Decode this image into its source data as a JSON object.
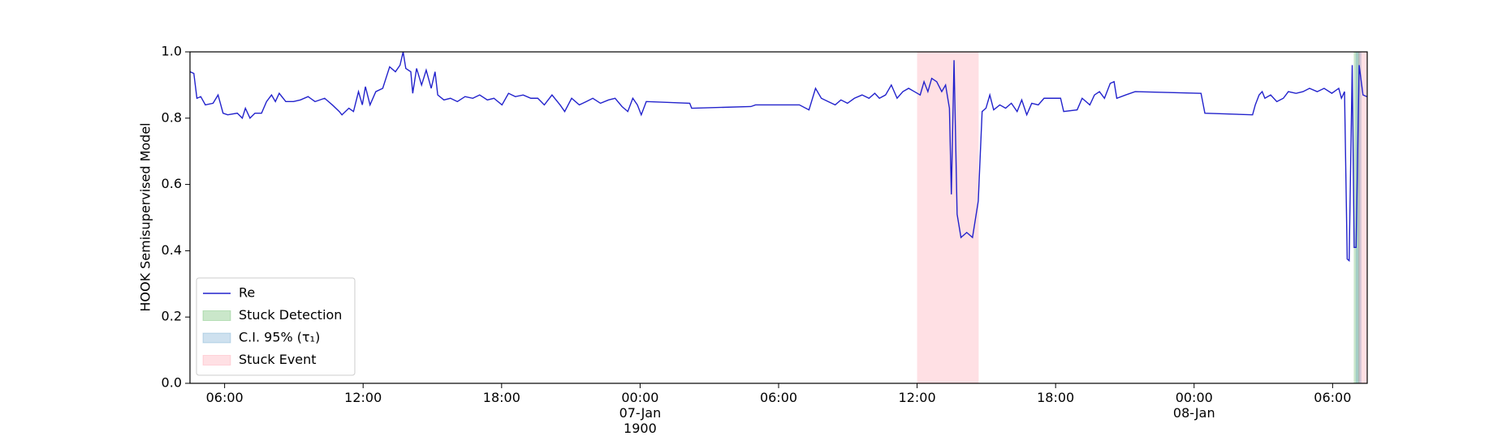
{
  "chart_data": {
    "type": "line",
    "ylabel": "HOOK Semisupervised Model",
    "xlim": [
      "1900-01-06 04:30",
      "1900-01-08 07:30"
    ],
    "ylim": [
      0,
      1
    ],
    "xticks": [
      {
        "value": "1900-01-06 06:00",
        "label": "06:00"
      },
      {
        "value": "1900-01-06 12:00",
        "label": "12:00"
      },
      {
        "value": "1900-01-06 18:00",
        "label": "18:00"
      },
      {
        "value": "1900-01-07 00:00",
        "label": "00:00\n07-Jan\n1900"
      },
      {
        "value": "1900-01-07 06:00",
        "label": "06:00"
      },
      {
        "value": "1900-01-07 12:00",
        "label": "12:00"
      },
      {
        "value": "1900-01-07 18:00",
        "label": "18:00"
      },
      {
        "value": "1900-01-08 00:00",
        "label": "00:00\n08-Jan"
      },
      {
        "value": "1900-01-08 06:00",
        "label": "06:00"
      }
    ],
    "yticks": [
      {
        "value": 0,
        "label": "0.0"
      },
      0.2,
      0.4,
      0.6,
      0.8,
      {
        "value": 1,
        "label": "1.0"
      }
    ],
    "legend": "lower left",
    "x": [
      "1900-01-06 04:30",
      "1900-01-06 04:40",
      "1900-01-06 04:48",
      "1900-01-06 04:58",
      "1900-01-06 05:10",
      "1900-01-06 05:30",
      "1900-01-06 05:43",
      "1900-01-06 05:56",
      "1900-01-06 06:08",
      "1900-01-06 06:33",
      "1900-01-06 06:46",
      "1900-01-06 06:54",
      "1900-01-06 07:06",
      "1900-01-06 07:19",
      "1900-01-06 07:36",
      "1900-01-06 07:49",
      "1900-01-06 08:02",
      "1900-01-06 08:12",
      "1900-01-06 08:22",
      "1900-01-06 08:39",
      "1900-01-06 08:59",
      "1900-01-06 09:17",
      "1900-01-06 09:37",
      "1900-01-06 09:55",
      "1900-01-06 10:20",
      "1900-01-06 10:40",
      "1900-01-06 10:58",
      "1900-01-06 11:05",
      "1900-01-06 11:23",
      "1900-01-06 11:35",
      "1900-01-06 11:48",
      "1900-01-06 11:58",
      "1900-01-06 12:06",
      "1900-01-06 12:18",
      "1900-01-06 12:33",
      "1900-01-06 12:51",
      "1900-01-06 13:09",
      "1900-01-06 13:24",
      "1900-01-06 13:36",
      "1900-01-06 13:44",
      "1900-01-06 13:51",
      "1900-01-06 14:04",
      "1900-01-06 14:09",
      "1900-01-06 14:19",
      "1900-01-06 14:32",
      "1900-01-06 14:44",
      "1900-01-06 14:57",
      "1900-01-06 15:07",
      "1900-01-06 15:14",
      "1900-01-06 15:30",
      "1900-01-06 15:47",
      "1900-01-06 16:05",
      "1900-01-06 16:25",
      "1900-01-06 16:45",
      "1900-01-06 17:03",
      "1900-01-06 17:23",
      "1900-01-06 17:40",
      "1900-01-06 18:01",
      "1900-01-06 18:18",
      "1900-01-06 18:36",
      "1900-01-06 18:56",
      "1900-01-06 19:16",
      "1900-01-06 19:34",
      "1900-01-06 19:51",
      "1900-01-06 20:11",
      "1900-01-06 20:32",
      "1900-01-06 20:44",
      "1900-01-06 21:02",
      "1900-01-06 21:22",
      "1900-01-06 21:40",
      "1900-01-06 21:57",
      "1900-01-06 22:17",
      "1900-01-06 22:38",
      "1900-01-06 22:55",
      "1900-01-06 23:13",
      "1900-01-06 23:28",
      "1900-01-06 23:41",
      "1900-01-06 23:53",
      "1900-01-07 00:03",
      "1900-01-07 00:16",
      "1900-01-07 02:09",
      "1900-01-07 02:14",
      "1900-01-07 04:48",
      "1900-01-07 05:00",
      "1900-01-07 06:54",
      "1900-01-07 07:19",
      "1900-01-07 07:36",
      "1900-01-07 07:51",
      "1900-01-07 08:09",
      "1900-01-07 08:27",
      "1900-01-07 08:42",
      "1900-01-07 08:59",
      "1900-01-07 09:17",
      "1900-01-07 09:37",
      "1900-01-07 09:55",
      "1900-01-07 10:10",
      "1900-01-07 10:22",
      "1900-01-07 10:38",
      "1900-01-07 10:53",
      "1900-01-07 11:08",
      "1900-01-07 11:23",
      "1900-01-07 11:38",
      "1900-01-07 11:53",
      "1900-01-07 12:08",
      "1900-01-07 12:18",
      "1900-01-07 12:28",
      "1900-01-07 12:38",
      "1900-01-07 12:51",
      "1900-01-07 13:04",
      "1900-01-07 13:14",
      "1900-01-07 13:24",
      "1900-01-07 13:29",
      "1900-01-07 13:36",
      "1900-01-07 13:44",
      "1900-01-07 13:54",
      "1900-01-07 14:09",
      "1900-01-07 14:24",
      "1900-01-07 14:39",
      "1900-01-07 14:49",
      "1900-01-07 14:59",
      "1900-01-07 15:09",
      "1900-01-07 15:19",
      "1900-01-07 15:35",
      "1900-01-07 15:50",
      "1900-01-07 16:05",
      "1900-01-07 16:20",
      "1900-01-07 16:32",
      "1900-01-07 16:45",
      "1900-01-07 16:58",
      "1900-01-07 17:15",
      "1900-01-07 17:30",
      "1900-01-07 18:13",
      "1900-01-07 18:21",
      "1900-01-07 18:56",
      "1900-01-07 19:09",
      "1900-01-07 19:29",
      "1900-01-07 19:41",
      "1900-01-07 19:54",
      "1900-01-07 20:07",
      "1900-01-07 20:22",
      "1900-01-07 20:32",
      "1900-01-07 20:39",
      "1900-01-07 21:02",
      "1900-01-07 21:27",
      "1900-01-08 00:18",
      "1900-01-08 00:28",
      "1900-01-08 02:32",
      "1900-01-08 02:39",
      "1900-01-08 02:49",
      "1900-01-08 02:57",
      "1900-01-08 03:04",
      "1900-01-08 03:19",
      "1900-01-08 03:35",
      "1900-01-08 03:52",
      "1900-01-08 04:05",
      "1900-01-08 04:25",
      "1900-01-08 04:43",
      "1900-01-08 05:00",
      "1900-01-08 05:20",
      "1900-01-08 05:38",
      "1900-01-08 05:58",
      "1900-01-08 06:16",
      "1900-01-08 06:23",
      "1900-01-08 06:31",
      "1900-01-08 06:38",
      "1900-01-08 06:43",
      "1900-01-08 06:51",
      "1900-01-08 06:56",
      "1900-01-08 07:01",
      "1900-01-08 07:09",
      "1900-01-08 07:19",
      "1900-01-08 07:29"
    ],
    "series": [
      {
        "name": "Re",
        "color": "#2222cc",
        "values": [
          0.94,
          0.935,
          0.86,
          0.865,
          0.84,
          0.845,
          0.87,
          0.815,
          0.81,
          0.815,
          0.8,
          0.83,
          0.8,
          0.815,
          0.815,
          0.85,
          0.87,
          0.85,
          0.875,
          0.85,
          0.85,
          0.855,
          0.865,
          0.85,
          0.86,
          0.84,
          0.82,
          0.81,
          0.83,
          0.82,
          0.88,
          0.84,
          0.895,
          0.84,
          0.88,
          0.89,
          0.955,
          0.94,
          0.96,
          1.0,
          0.95,
          0.94,
          0.875,
          0.95,
          0.9,
          0.945,
          0.89,
          0.94,
          0.87,
          0.855,
          0.86,
          0.85,
          0.865,
          0.86,
          0.87,
          0.855,
          0.86,
          0.84,
          0.875,
          0.865,
          0.87,
          0.86,
          0.86,
          0.84,
          0.87,
          0.84,
          0.82,
          0.86,
          0.84,
          0.85,
          0.86,
          0.845,
          0.855,
          0.86,
          0.835,
          0.82,
          0.86,
          0.84,
          0.81,
          0.85,
          0.845,
          0.83,
          0.835,
          0.84,
          0.84,
          0.825,
          0.89,
          0.86,
          0.85,
          0.84,
          0.855,
          0.845,
          0.86,
          0.87,
          0.86,
          0.875,
          0.86,
          0.87,
          0.9,
          0.86,
          0.88,
          0.89,
          0.88,
          0.87,
          0.91,
          0.88,
          0.92,
          0.91,
          0.88,
          0.9,
          0.83,
          0.57,
          0.975,
          0.51,
          0.44,
          0.455,
          0.44,
          0.55,
          0.82,
          0.83,
          0.87,
          0.825,
          0.84,
          0.83,
          0.845,
          0.82,
          0.855,
          0.81,
          0.845,
          0.84,
          0.86,
          0.86,
          0.82,
          0.825,
          0.86,
          0.84,
          0.87,
          0.88,
          0.86,
          0.905,
          0.91,
          0.86,
          0.87,
          0.88,
          0.875,
          0.815,
          0.81,
          0.84,
          0.87,
          0.88,
          0.86,
          0.87,
          0.85,
          0.86,
          0.88,
          0.875,
          0.88,
          0.89,
          0.88,
          0.89,
          0.875,
          0.89,
          0.86,
          0.88,
          0.375,
          0.37,
          0.96,
          0.41,
          0.41,
          0.96,
          0.87,
          0.865
        ]
      }
    ],
    "regions": [
      {
        "name": "Stuck Detection",
        "color": "#2ca02c",
        "spans": [
          [
            "1900-01-08 06:55",
            "1900-01-08 07:10"
          ]
        ]
      },
      {
        "name": "C.I. 95% (τ₁)",
        "color": "#1f77b4",
        "spans": [
          [
            "1900-01-08 07:00",
            "1900-01-08 07:15"
          ]
        ]
      },
      {
        "name": "Stuck Event",
        "color": "#ff0022",
        "spans": [
          [
            "1900-01-07 12:00",
            "1900-01-07 14:40"
          ],
          [
            "1900-01-08 07:07",
            "1900-01-08 07:30"
          ]
        ]
      }
    ]
  }
}
